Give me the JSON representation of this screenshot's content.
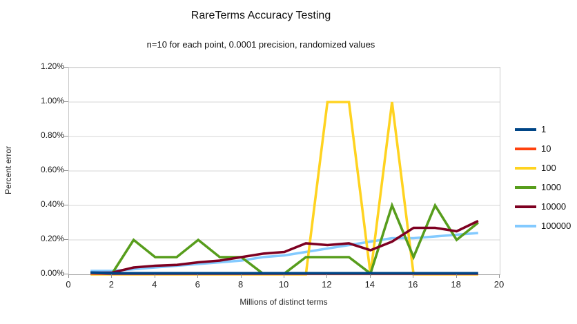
{
  "chart_data": {
    "type": "line",
    "title": "RareTerms Accuracy Testing",
    "subtitle": "n=10 for each point, 0.0001 precision, randomized values",
    "xlabel": "Millions of distinct terms",
    "ylabel": "Percent error",
    "xlim": [
      0,
      20
    ],
    "ylim_percent": [
      0,
      1.2
    ],
    "grid": true,
    "legend_position": "right",
    "x_ticks": [
      0,
      2,
      4,
      6,
      8,
      10,
      12,
      14,
      16,
      18,
      20
    ],
    "y_tick_labels": [
      "0.00%",
      "0.20%",
      "0.40%",
      "0.60%",
      "0.80%",
      "1.00%",
      "1.20%"
    ],
    "x": [
      1,
      2,
      3,
      4,
      5,
      6,
      7,
      8,
      9,
      10,
      11,
      12,
      13,
      14,
      15,
      16,
      17,
      18,
      19
    ],
    "series": [
      {
        "name": "1",
        "color": "#004586",
        "values": [
          0.01,
          0.006,
          0.006,
          0.006,
          0.006,
          0.006,
          0.006,
          0.006,
          0.006,
          0.006,
          0.006,
          0.006,
          0.006,
          0.006,
          0.006,
          0.006,
          0.006,
          0.006,
          0.006
        ]
      },
      {
        "name": "10",
        "color": "#FF420E",
        "values": [
          0.005,
          0.003,
          0.003,
          0.003,
          0.003,
          0.003,
          0.003,
          0.003,
          0.003,
          0.003,
          0.003,
          0.003,
          0.003,
          0.003,
          0.003,
          0.003,
          0.003,
          0.003,
          0.003
        ]
      },
      {
        "name": "100",
        "color": "#FFD320",
        "values": [
          0.0,
          0.0,
          0.0,
          0.0,
          0.0,
          0.0,
          0.0,
          0.0,
          0.0,
          0.0,
          0.0,
          1.0,
          1.0,
          0.0,
          1.0,
          0.0,
          0.0,
          0.0,
          0.0
        ]
      },
      {
        "name": "1000",
        "color": "#579D1C",
        "values": [
          0.01,
          0.005,
          0.2,
          0.1,
          0.1,
          0.2,
          0.1,
          0.1,
          0.005,
          0.005,
          0.1,
          0.1,
          0.1,
          0.005,
          0.4,
          0.1,
          0.4,
          0.2,
          0.3
        ]
      },
      {
        "name": "10000",
        "color": "#7E0021",
        "values": [
          0.01,
          0.01,
          0.04,
          0.05,
          0.055,
          0.07,
          0.08,
          0.1,
          0.12,
          0.13,
          0.18,
          0.17,
          0.18,
          0.14,
          0.19,
          0.27,
          0.27,
          0.25,
          0.31
        ]
      },
      {
        "name": "100000",
        "color": "#83CAFF",
        "values": [
          0.02,
          0.02,
          0.03,
          0.04,
          0.05,
          0.06,
          0.07,
          0.08,
          0.1,
          0.11,
          0.13,
          0.15,
          0.17,
          0.19,
          0.21,
          0.21,
          0.22,
          0.23,
          0.24
        ]
      }
    ],
    "draw_order": [
      "100000",
      "100",
      "1000",
      "10000",
      "10",
      "1"
    ]
  }
}
